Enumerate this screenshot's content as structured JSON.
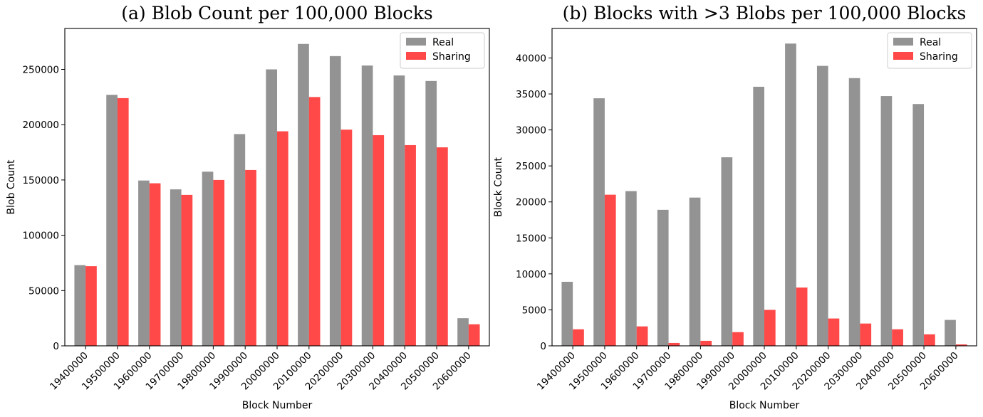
{
  "chart_data": [
    {
      "type": "bar",
      "title": "(a) Blob Count per 100,000 Blocks",
      "xlabel": "Block Number",
      "ylabel": "Blob Count",
      "categories": [
        "19400000",
        "19500000",
        "19600000",
        "19700000",
        "19800000",
        "19900000",
        "20000000",
        "20100000",
        "20200000",
        "20300000",
        "20400000",
        "20500000",
        "20600000"
      ],
      "series": [
        {
          "name": "Real",
          "color": "#808080",
          "values": [
            73000,
            227000,
            149500,
            141500,
            157500,
            191500,
            250000,
            273000,
            262000,
            253500,
            244500,
            239500,
            25000
          ]
        },
        {
          "name": "Sharing",
          "color": "#ff2020",
          "values": [
            72000,
            224000,
            147000,
            136500,
            150000,
            159000,
            194000,
            225000,
            195500,
            190500,
            181500,
            179500,
            19500
          ]
        }
      ],
      "ylim": [
        0,
        287000
      ],
      "yticks": [
        0,
        50000,
        100000,
        150000,
        200000,
        250000
      ],
      "legend": "top-right",
      "grid": false
    },
    {
      "type": "bar",
      "title": "(b) Blocks with >3 Blobs per 100,000 Blocks",
      "xlabel": "Block Number",
      "ylabel": "Block Count",
      "categories": [
        "19400000",
        "19500000",
        "19600000",
        "19700000",
        "19800000",
        "19900000",
        "20000000",
        "20100000",
        "20200000",
        "20300000",
        "20400000",
        "20500000",
        "20600000"
      ],
      "series": [
        {
          "name": "Real",
          "color": "#808080",
          "values": [
            8900,
            34400,
            21500,
            18900,
            20600,
            26200,
            36000,
            42000,
            38900,
            37200,
            34700,
            33600,
            3600
          ]
        },
        {
          "name": "Sharing",
          "color": "#ff2020",
          "values": [
            2300,
            21000,
            2700,
            400,
            700,
            1900,
            5000,
            8100,
            3800,
            3100,
            2300,
            1600,
            200
          ]
        }
      ],
      "ylim": [
        0,
        44100
      ],
      "yticks": [
        0,
        5000,
        10000,
        15000,
        20000,
        25000,
        30000,
        35000,
        40000
      ],
      "legend": "top-right",
      "grid": false
    }
  ]
}
